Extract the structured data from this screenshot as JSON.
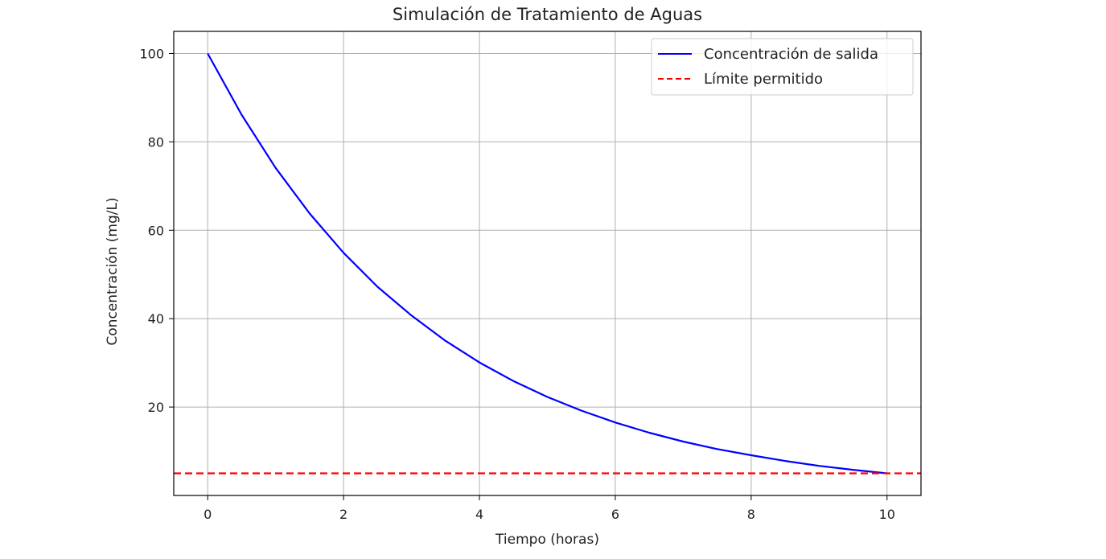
{
  "chart_data": {
    "type": "line",
    "title": "Simulación de Tratamiento de Aguas",
    "xlabel": "Tiempo (horas)",
    "ylabel": "Concentración (mg/L)",
    "xlim": [
      -0.5,
      10.5
    ],
    "ylim": [
      0,
      105
    ],
    "xticks": [
      0,
      2,
      4,
      6,
      8,
      10
    ],
    "yticks": [
      20,
      40,
      60,
      80,
      100
    ],
    "grid": true,
    "legend_position": "upper-right",
    "series": [
      {
        "name": "Concentración de salida",
        "style": "solid",
        "color": "#0000ff",
        "x": [
          0,
          0.5,
          1,
          1.5,
          2,
          2.5,
          3,
          3.5,
          4,
          4.5,
          5,
          5.5,
          6,
          6.5,
          7,
          7.5,
          8,
          8.5,
          9,
          9.5,
          10
        ],
        "y": [
          100,
          86.1,
          74.1,
          63.8,
          54.9,
          47.2,
          40.7,
          35.0,
          30.1,
          25.9,
          22.3,
          19.2,
          16.5,
          14.2,
          12.2,
          10.5,
          9.1,
          7.8,
          6.7,
          5.8,
          5.0
        ]
      },
      {
        "name": "Límite permitido",
        "style": "dashed",
        "color": "#ff0000",
        "y_constant": 5
      }
    ]
  }
}
